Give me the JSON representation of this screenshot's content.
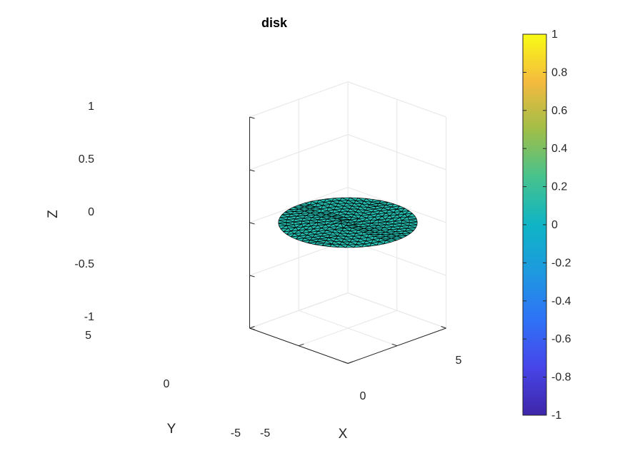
{
  "chart_data": {
    "type": "surface",
    "title": "disk",
    "xlabel": "X",
    "ylabel": "Y",
    "zlabel": "Z",
    "xlim": [
      -5,
      5
    ],
    "ylim": [
      -5,
      5
    ],
    "zlim": [
      -1,
      1
    ],
    "x_ticks": [
      "-5",
      "0",
      "5"
    ],
    "y_ticks": [
      "-5",
      "0",
      "5"
    ],
    "z_ticks": [
      "-1",
      "-0.5",
      "0",
      "0.5",
      "1"
    ],
    "surface": {
      "shape": "disk",
      "radius": 5,
      "z": 0,
      "mesh": "triangulated",
      "face_color": "#25c0b2",
      "edge_color": "#000000"
    },
    "colorbar": {
      "range": [
        -1,
        1
      ],
      "ticks": [
        "-1",
        "-0.8",
        "-0.6",
        "-0.4",
        "-0.2",
        "0",
        "0.2",
        "0.4",
        "0.6",
        "0.8",
        "1"
      ],
      "colormap": "parula"
    },
    "grid": true
  }
}
